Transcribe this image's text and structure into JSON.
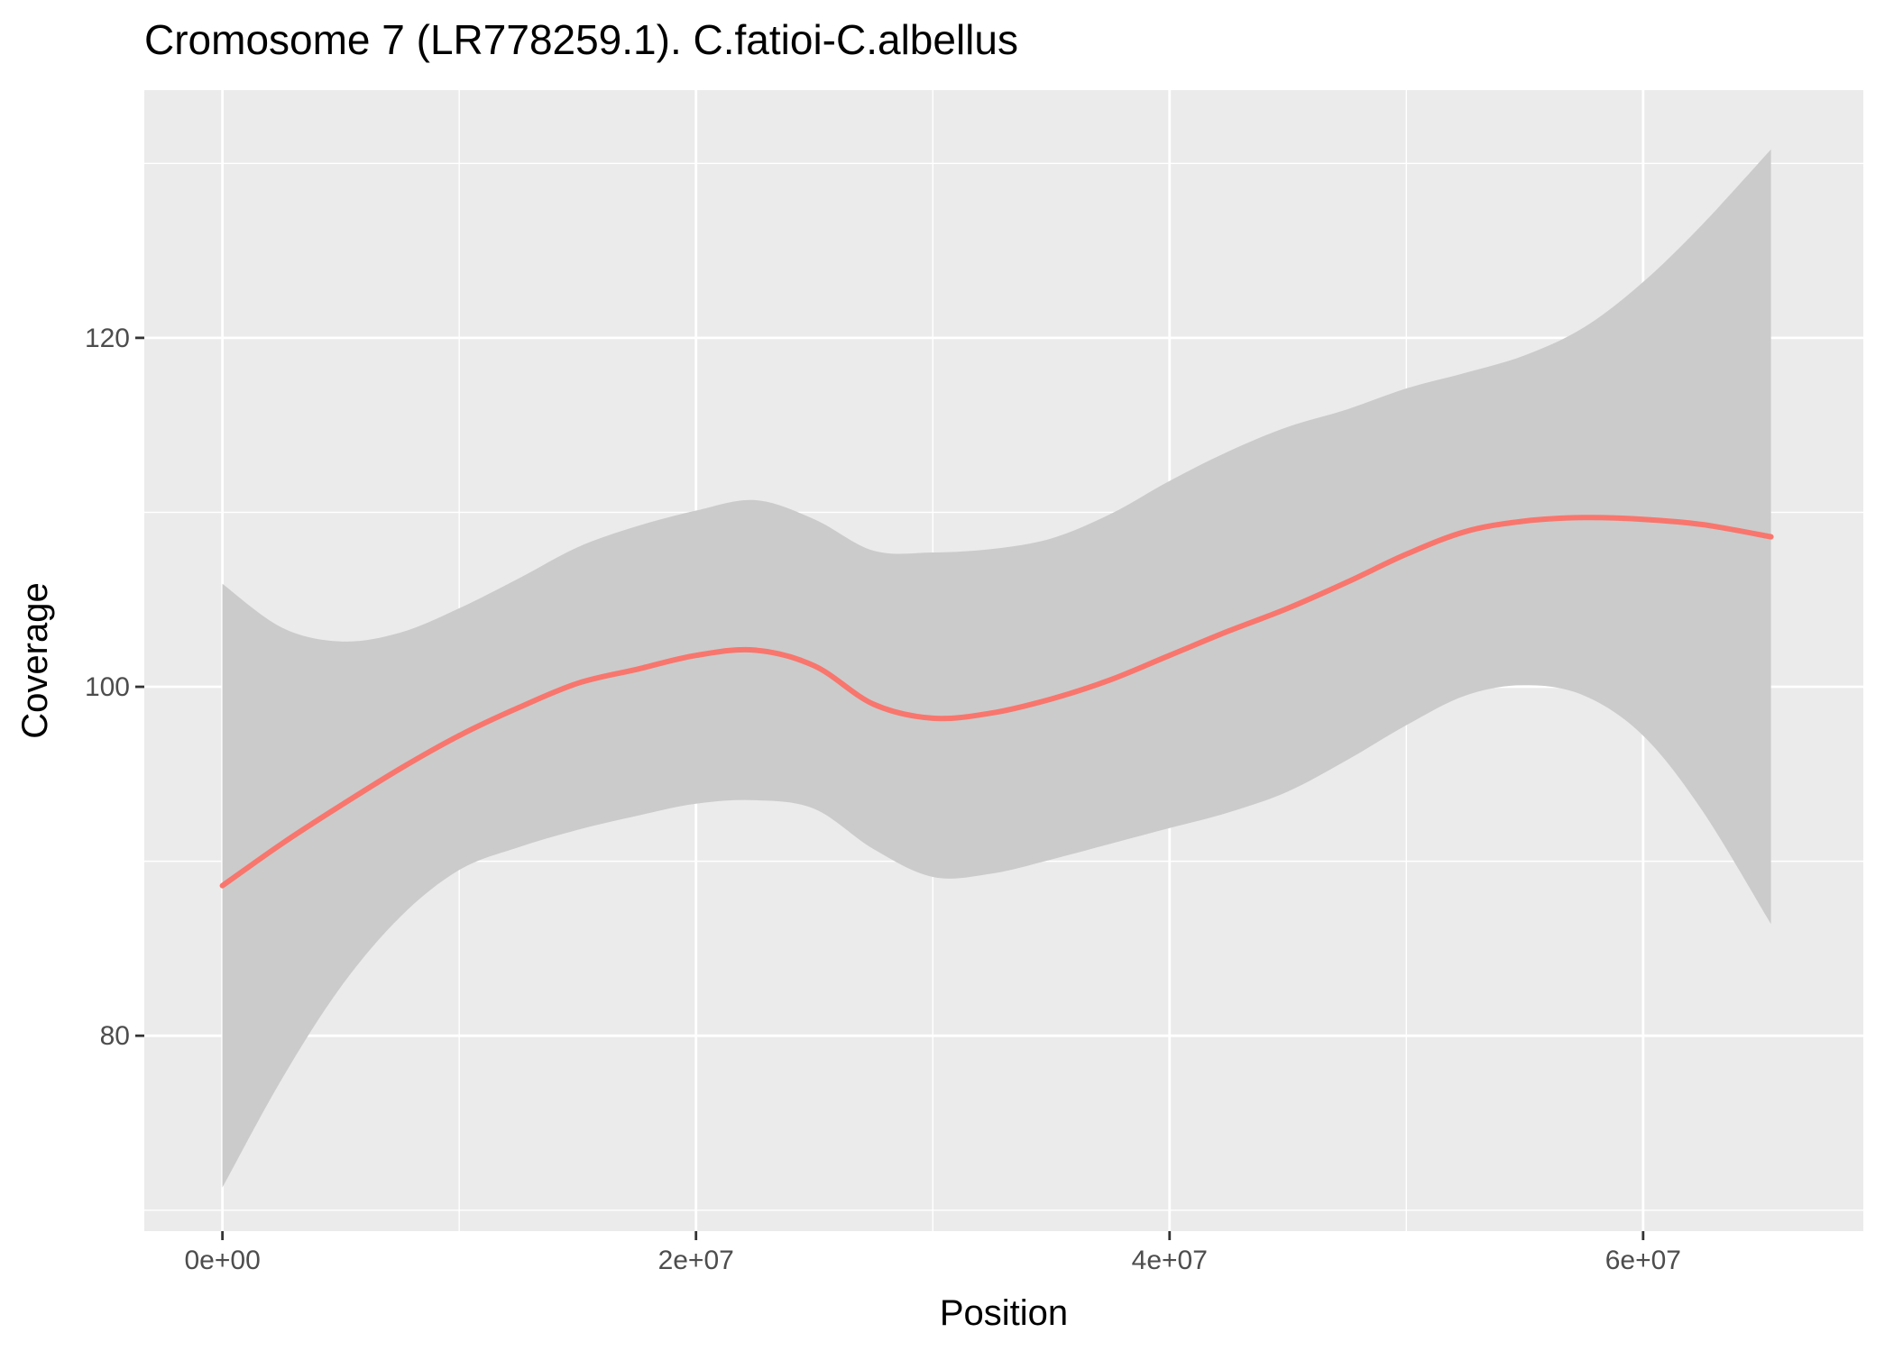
{
  "chart_data": {
    "type": "line",
    "title": "Cromosome 7 (LR778259.1). C.fatioi-C.albellus",
    "xlabel": "Position",
    "ylabel": "Coverage",
    "x_ticks": [
      {
        "value": 0,
        "label": "0e+00"
      },
      {
        "value": 20000000,
        "label": "2e+07"
      },
      {
        "value": 40000000,
        "label": "4e+07"
      },
      {
        "value": 60000000,
        "label": "6e+07"
      }
    ],
    "y_ticks": [
      {
        "value": 80,
        "label": "80"
      },
      {
        "value": 100,
        "label": "100"
      },
      {
        "value": 120,
        "label": "120"
      }
    ],
    "xlim": [
      -3300000,
      69300000
    ],
    "ylim": [
      68.8,
      134.2
    ],
    "grid": true,
    "background": "#ebebeb",
    "series": [
      {
        "color": "#f8766d",
        "ribbon_color": "#cbcbcb",
        "x": [
          0,
          2500000,
          5000000,
          7500000,
          10000000,
          12500000,
          15000000,
          17500000,
          20000000,
          22500000,
          25000000,
          27500000,
          30000000,
          32500000,
          35000000,
          37500000,
          40000000,
          42500000,
          45000000,
          47500000,
          50000000,
          52500000,
          55000000,
          57500000,
          60000000,
          62500000,
          65400000
        ],
        "y": [
          88.6,
          91.0,
          93.2,
          95.3,
          97.2,
          98.8,
          100.2,
          101.0,
          101.8,
          102.1,
          101.2,
          99.0,
          98.2,
          98.5,
          99.3,
          100.4,
          101.8,
          103.2,
          104.5,
          106.0,
          107.6,
          108.9,
          109.5,
          109.7,
          109.6,
          109.3,
          108.6
        ],
        "lower": [
          71.3,
          77.5,
          82.8,
          86.8,
          89.5,
          90.8,
          91.8,
          92.6,
          93.3,
          93.5,
          93.0,
          90.7,
          89.1,
          89.3,
          90.1,
          91.0,
          91.9,
          92.8,
          94.0,
          95.8,
          97.8,
          99.5,
          100.1,
          99.5,
          97.2,
          92.9,
          86.4
        ],
        "upper": [
          105.9,
          103.4,
          102.6,
          103.1,
          104.5,
          106.2,
          108.0,
          109.2,
          110.1,
          110.7,
          109.6,
          107.8,
          107.7,
          107.9,
          108.5,
          109.9,
          111.8,
          113.5,
          114.9,
          115.9,
          117.1,
          118.0,
          119.0,
          120.6,
          123.2,
          126.5,
          130.8
        ]
      }
    ]
  }
}
